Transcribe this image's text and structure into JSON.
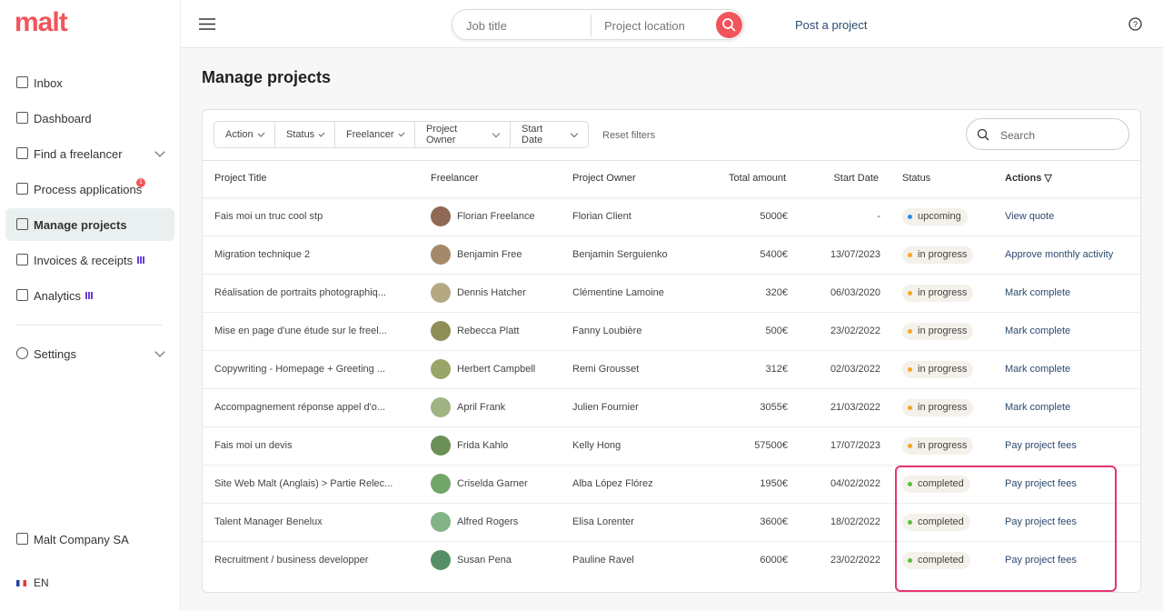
{
  "brand": "malt",
  "search": {
    "job_title": "Job title",
    "location": "Project location"
  },
  "post_project": "Post a project",
  "nav": [
    {
      "label": "Inbox"
    },
    {
      "label": "Dashboard"
    },
    {
      "label": "Find a freelancer"
    },
    {
      "label": "Process applications"
    },
    {
      "label": "Manage projects"
    },
    {
      "label": "Invoices & receipts"
    },
    {
      "label": "Analytics"
    },
    {
      "label": "Settings"
    }
  ],
  "process_badge": "1",
  "company": "Malt Company SA",
  "language": "EN",
  "page_title": "Manage projects",
  "filters": [
    "Action",
    "Status",
    "Freelancer",
    "Project Owner",
    "Start Date"
  ],
  "reset_filters": "Reset filters",
  "search_placeholder": "Search",
  "table": {
    "columns": [
      "Project Title",
      "Freelancer",
      "Project Owner",
      "Total amount",
      "Start Date",
      "Status",
      "Actions ▽"
    ],
    "rows": [
      {
        "title": "Fais moi un truc cool stp",
        "freelancer": "Florian Freelance",
        "owner": "Florian Client",
        "amount": "5000€",
        "date": "-",
        "status": "upcoming",
        "status_color": "#2b8ef0",
        "action": "View quote"
      },
      {
        "title": "Migration technique 2",
        "freelancer": "Benjamin Free",
        "owner": "Benjamin Serguienko",
        "amount": "5400€",
        "date": "13/07/2023",
        "status": "in progress",
        "status_color": "#f5a623",
        "action": "Approve monthly activity"
      },
      {
        "title": "Réalisation de portraits photographiq...",
        "freelancer": "Dennis Hatcher",
        "owner": "Clémentine Lamoine",
        "amount": "320€",
        "date": "06/03/2020",
        "status": "in progress",
        "status_color": "#f5a623",
        "action": "Mark complete"
      },
      {
        "title": "Mise en page d'une étude sur le freel...",
        "freelancer": "Rebecca Platt",
        "owner": "Fanny Loubière",
        "amount": "500€",
        "date": "23/02/2022",
        "status": "in progress",
        "status_color": "#f5a623",
        "action": "Mark complete"
      },
      {
        "title": "Copywriting - Homepage + Greeting ...",
        "freelancer": "Herbert Campbell",
        "owner": "Remi Grousset",
        "amount": "312€",
        "date": "02/03/2022",
        "status": "in progress",
        "status_color": "#f5a623",
        "action": "Mark complete"
      },
      {
        "title": "Accompagnement réponse appel d'o...",
        "freelancer": "April Frank",
        "owner": "Julien Fournier",
        "amount": "3055€",
        "date": "21/03/2022",
        "status": "in progress",
        "status_color": "#f5a623",
        "action": "Mark complete"
      },
      {
        "title": "Fais moi un devis",
        "freelancer": "Frida Kahlo",
        "owner": "Kelly Hong",
        "amount": "57500€",
        "date": "17/07/2023",
        "status": "in progress",
        "status_color": "#f5a623",
        "action": "Pay project fees"
      },
      {
        "title": "Site Web Malt (Anglais) > Partie Relec...",
        "freelancer": "Criselda Garner",
        "owner": "Alba López Flórez",
        "amount": "1950€",
        "date": "04/02/2022",
        "status": "completed",
        "status_color": "#5bbf3a",
        "action": "Pay project fees"
      },
      {
        "title": "Talent Manager Benelux",
        "freelancer": "Alfred Rogers",
        "owner": "Elisa Lorenter",
        "amount": "3600€",
        "date": "18/02/2022",
        "status": "completed",
        "status_color": "#5bbf3a",
        "action": "Pay project fees"
      },
      {
        "title": "Recruitment / business developper",
        "freelancer": "Susan Pena",
        "owner": "Pauline Ravel",
        "amount": "6000€",
        "date": "23/02/2022",
        "status": "completed",
        "status_color": "#5bbf3a",
        "action": "Pay project fees"
      }
    ]
  }
}
